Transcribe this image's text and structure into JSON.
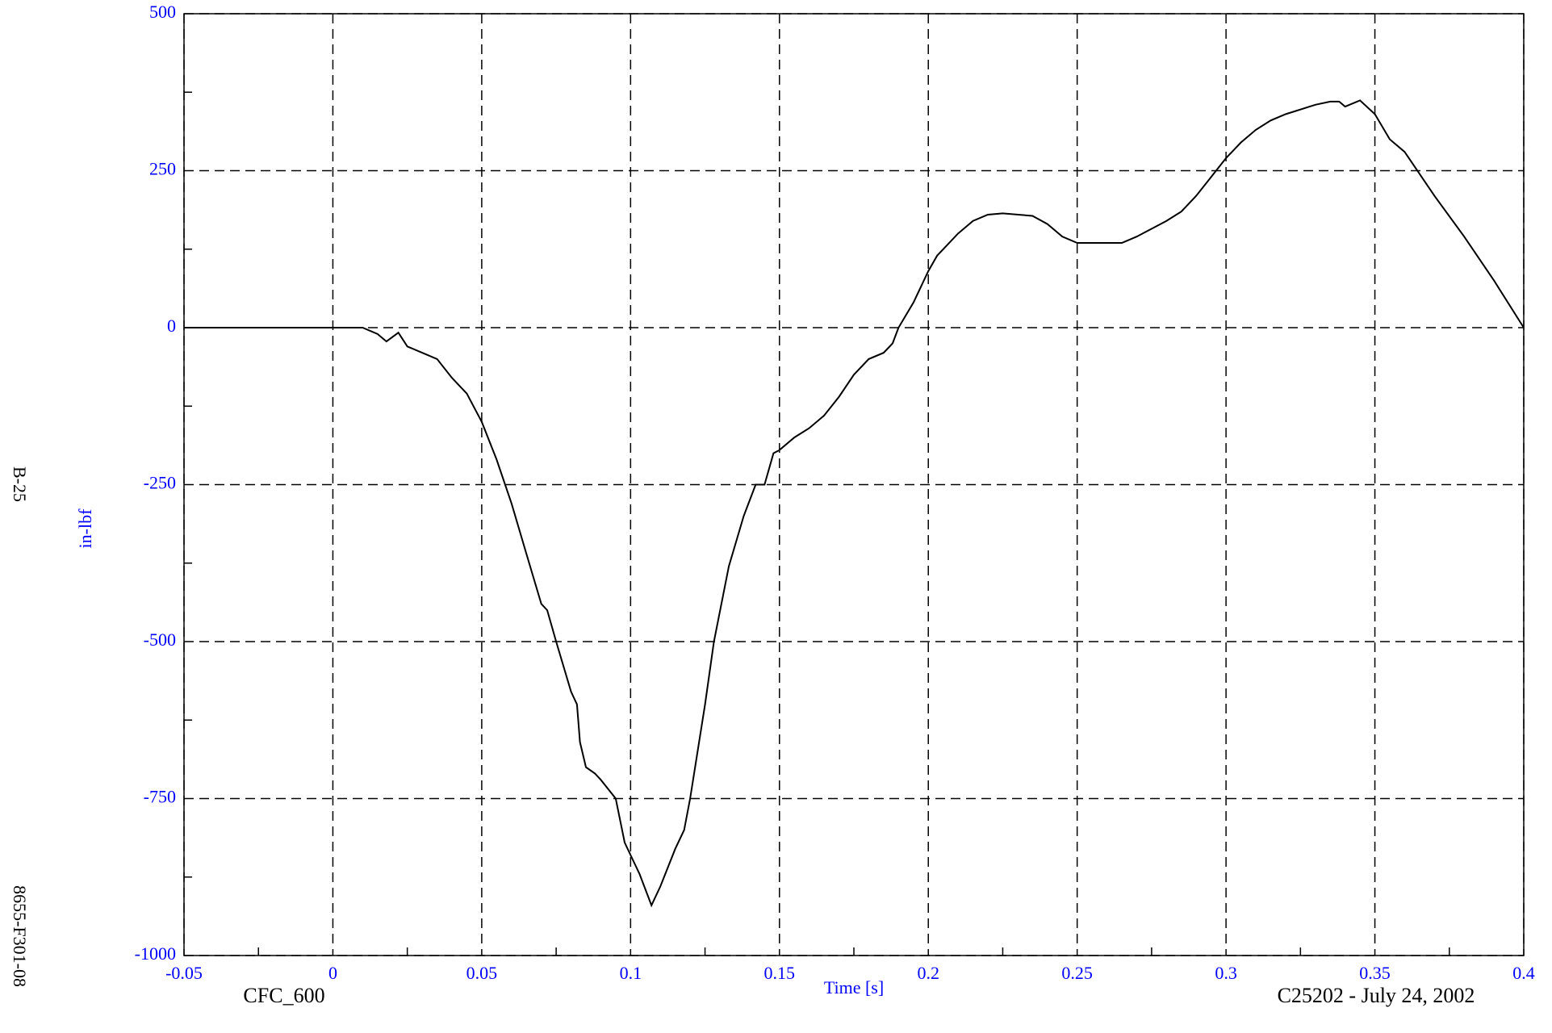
{
  "chart_data": {
    "type": "line",
    "y_label": "in-lbf",
    "x_label": "Time [s]",
    "note_left": "CFC_600",
    "note_right": "C25202 - July 24, 2002",
    "page_label": "B-25",
    "side_label": "8655-F301-08",
    "xlim": [
      -0.05,
      0.4
    ],
    "ylim": [
      -1000,
      500
    ],
    "xticks": [
      -0.05,
      0,
      0.05,
      0.1,
      0.15,
      0.2,
      0.25,
      0.3,
      0.35,
      0.4
    ],
    "yticks": [
      -1000,
      -750,
      -500,
      -250,
      0,
      250,
      500
    ],
    "minor_xticks": [
      -0.025,
      0.025,
      0.075,
      0.125,
      0.175,
      0.225,
      0.275,
      0.325,
      0.375
    ],
    "minor_yticks": [
      -875,
      -625,
      -375,
      -125,
      125,
      375
    ],
    "grid": true,
    "series": [
      {
        "color": "#000000",
        "x": [
          -0.05,
          0.0,
          0.01,
          0.015,
          0.018,
          0.022,
          0.025,
          0.03,
          0.035,
          0.04,
          0.045,
          0.05,
          0.055,
          0.06,
          0.065,
          0.07,
          0.072,
          0.075,
          0.08,
          0.082,
          0.083,
          0.085,
          0.088,
          0.09,
          0.095,
          0.098,
          0.1,
          0.103,
          0.107,
          0.11,
          0.115,
          0.118,
          0.12,
          0.125,
          0.128,
          0.133,
          0.138,
          0.142,
          0.145,
          0.148,
          0.15,
          0.155,
          0.16,
          0.165,
          0.17,
          0.175,
          0.18,
          0.185,
          0.188,
          0.19,
          0.195,
          0.2,
          0.203,
          0.205,
          0.21,
          0.215,
          0.22,
          0.225,
          0.235,
          0.24,
          0.245,
          0.25,
          0.26,
          0.265,
          0.27,
          0.28,
          0.285,
          0.29,
          0.295,
          0.3,
          0.305,
          0.31,
          0.315,
          0.32,
          0.33,
          0.335,
          0.338,
          0.34,
          0.345,
          0.35,
          0.355,
          0.36,
          0.37,
          0.38,
          0.39,
          0.4
        ],
        "values": [
          0,
          0,
          0,
          -10,
          -22,
          -8,
          -30,
          -40,
          -50,
          -80,
          -105,
          -150,
          -210,
          -280,
          -360,
          -440,
          -450,
          -500,
          -580,
          -600,
          -660,
          -700,
          -710,
          -720,
          -750,
          -820,
          -840,
          -870,
          -920,
          -890,
          -830,
          -800,
          -750,
          -600,
          -500,
          -380,
          -300,
          -250,
          -250,
          -200,
          -195,
          -175,
          -160,
          -140,
          -110,
          -75,
          -50,
          -40,
          -25,
          0,
          40,
          90,
          115,
          125,
          150,
          170,
          180,
          182,
          178,
          165,
          145,
          135,
          135,
          135,
          145,
          170,
          185,
          210,
          240,
          270,
          295,
          315,
          330,
          340,
          355,
          360,
          360,
          352,
          362,
          340,
          300,
          280,
          210,
          145,
          75,
          0
        ]
      }
    ]
  }
}
